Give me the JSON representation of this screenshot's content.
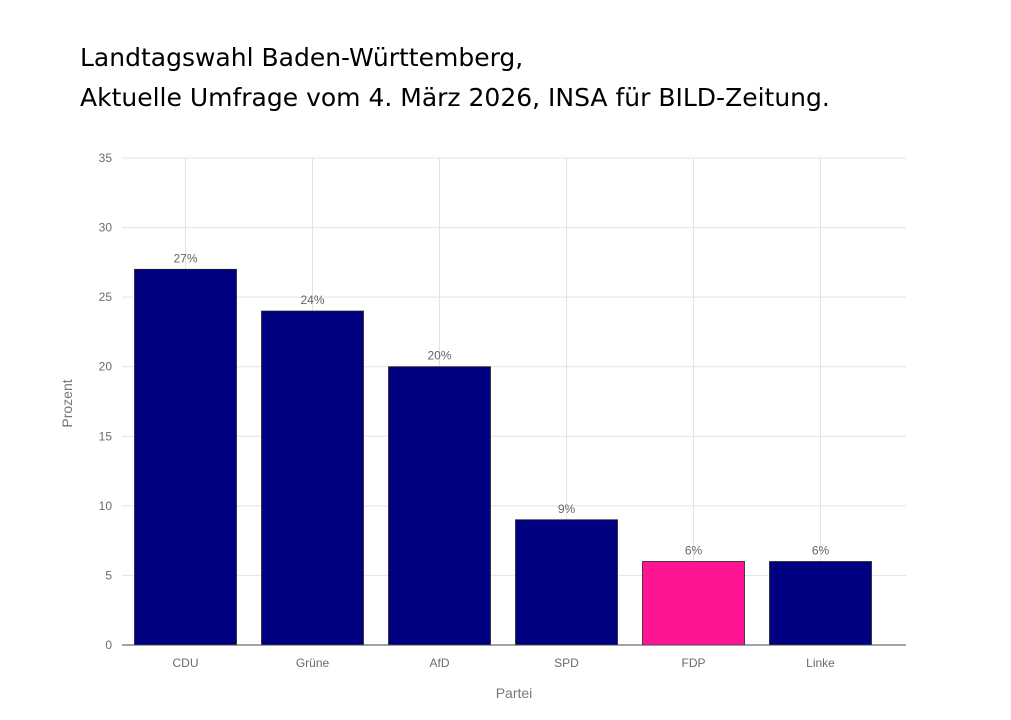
{
  "title": {
    "line1": "Landtagswahl Baden-Württemberg,",
    "line2": "Aktuelle Umfrage vom 4. März 2026, INSA für BILD-Zeitung."
  },
  "colors": {
    "default_bar": "#000080",
    "fdp_bar": "#ff1493",
    "grid": "#e3e3e3",
    "axis": "#444444"
  },
  "chart_data": {
    "type": "bar",
    "categories": [
      "CDU",
      "Grüne",
      "AfD",
      "SPD",
      "FDP",
      "Linke"
    ],
    "values": [
      27,
      24,
      20,
      9,
      6,
      6
    ],
    "data_labels": [
      "27%",
      "24%",
      "20%",
      "9%",
      "6%",
      "6%"
    ],
    "bar_colors": [
      "#000080",
      "#000080",
      "#000080",
      "#000080",
      "#ff1493",
      "#000080"
    ],
    "xlabel": "Partei",
    "ylabel": "Prozent",
    "ylim": [
      0,
      35
    ],
    "yticks": [
      0,
      5,
      10,
      15,
      20,
      25,
      30,
      35
    ],
    "grid": true
  }
}
